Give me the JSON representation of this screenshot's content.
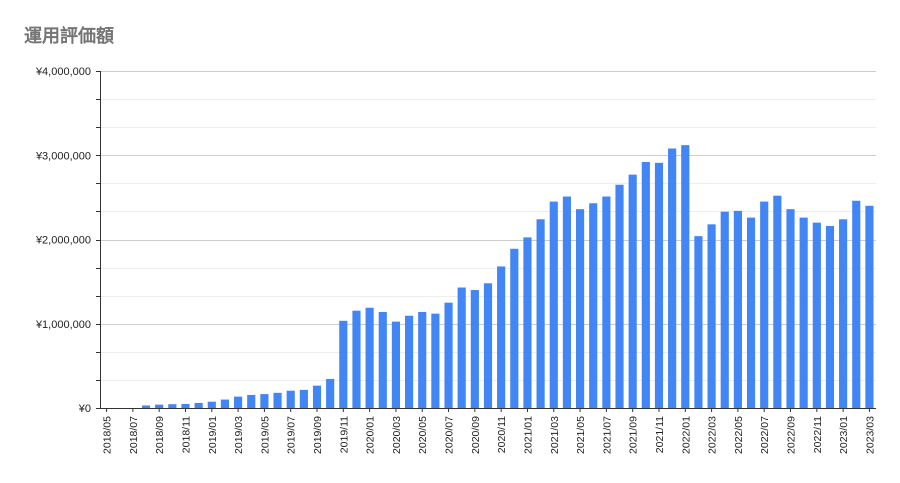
{
  "title": "運用評価額",
  "colors": {
    "bar": "#4285f4",
    "grid": "#e0e0e0",
    "axis": "#333333",
    "title": "#757575",
    "label": "#222222"
  },
  "chart_data": {
    "type": "bar",
    "title": "運用評価額",
    "xlabel": "",
    "ylabel": "",
    "ylim": [
      0,
      4000000
    ],
    "grid": true,
    "legend": "none",
    "yticks": [
      {
        "value": 0,
        "label": "¥0"
      },
      {
        "value": 1000000,
        "label": "¥1,000,000"
      },
      {
        "value": 2000000,
        "label": "¥2,000,000"
      },
      {
        "value": 3000000,
        "label": "¥3,000,000"
      },
      {
        "value": 4000000,
        "label": "¥4,000,000"
      }
    ],
    "categories": [
      "2018/05",
      "2018/06",
      "2018/07",
      "2018/08",
      "2018/09",
      "2018/10",
      "2018/11",
      "2018/12",
      "2019/01",
      "2019/02",
      "2019/03",
      "2019/04",
      "2019/05",
      "2019/06",
      "2019/07",
      "2019/08",
      "2019/09",
      "2019/10",
      "2019/11",
      "2019/12",
      "2020/01",
      "2020/02",
      "2020/03",
      "2020/04",
      "2020/05",
      "2020/06",
      "2020/07",
      "2020/08",
      "2020/09",
      "2020/10",
      "2020/11",
      "2020/12",
      "2021/01",
      "2021/02",
      "2021/03",
      "2021/04",
      "2021/05",
      "2021/06",
      "2021/07",
      "2021/08",
      "2021/09",
      "2021/10",
      "2021/11",
      "2021/12",
      "2022/01",
      "2022/02",
      "2022/03",
      "2022/04",
      "2022/05",
      "2022/06",
      "2022/07",
      "2022/08",
      "2022/09",
      "2022/10",
      "2022/11",
      "2022/12",
      "2023/01",
      "2023/02",
      "2023/03"
    ],
    "xtick_labels": [
      "2018/05",
      "2018/07",
      "2018/09",
      "2018/11",
      "2019/01",
      "2019/03",
      "2019/05",
      "2019/07",
      "2019/09",
      "2019/11",
      "2020/01",
      "2020/03",
      "2020/05",
      "2020/07",
      "2020/09",
      "2020/11",
      "2021/01",
      "2021/03",
      "2021/05",
      "2021/07",
      "2021/09",
      "2021/11",
      "2022/01",
      "2022/03",
      "2022/05",
      "2022/07",
      "2022/09",
      "2022/11",
      "2023/01",
      "2023/03"
    ],
    "values": [
      0,
      0,
      0,
      30000,
      40000,
      45000,
      48000,
      60000,
      75000,
      100000,
      135000,
      155000,
      165000,
      180000,
      205000,
      215000,
      265000,
      345000,
      1035000,
      1155000,
      1190000,
      1140000,
      1025000,
      1095000,
      1140000,
      1120000,
      1250000,
      1430000,
      1400000,
      1480000,
      1680000,
      1890000,
      2025000,
      2240000,
      2450000,
      2510000,
      2360000,
      2430000,
      2510000,
      2650000,
      2770000,
      2920000,
      2910000,
      3080000,
      3120000,
      2040000,
      2180000,
      2330000,
      2340000,
      2260000,
      2450000,
      2520000,
      2360000,
      2260000,
      2200000,
      2160000,
      2240000,
      2460000,
      2400000
    ]
  }
}
